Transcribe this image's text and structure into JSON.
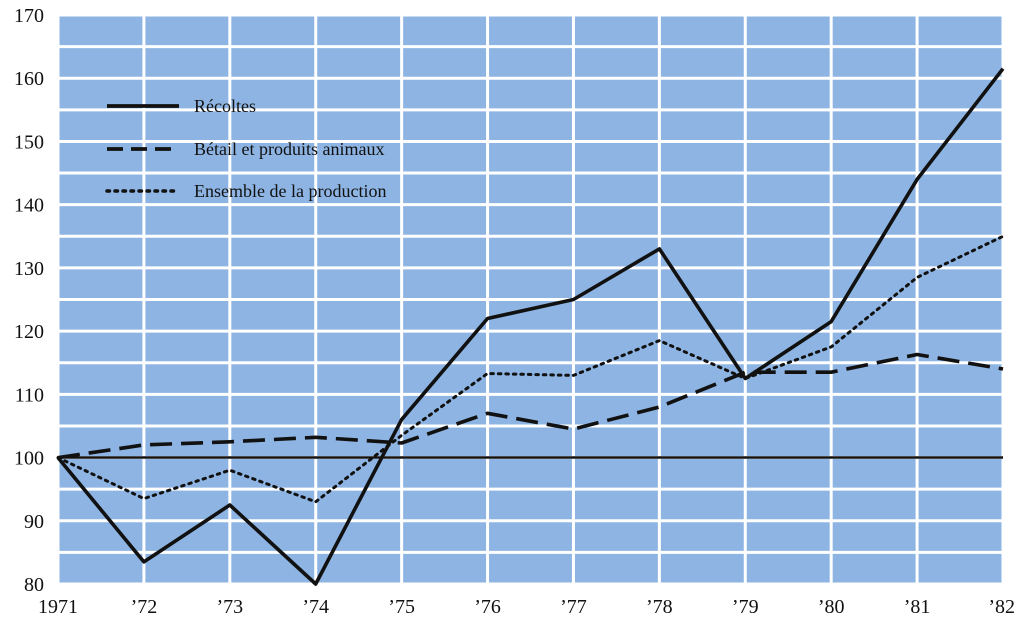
{
  "chart_data": {
    "type": "line",
    "x": [
      "1971",
      "'72",
      "'73",
      "'74",
      "'75",
      "'76",
      "'77",
      "'78",
      "'79",
      "'80",
      "'81",
      "'82"
    ],
    "x_tick_labels": [
      "1971",
      "’72",
      "’73",
      "’74",
      "’75",
      "’76",
      "’77",
      "’78",
      "’79",
      "’80",
      "’81",
      "’82"
    ],
    "y_ticks": [
      80,
      90,
      100,
      110,
      120,
      130,
      140,
      150,
      160,
      170
    ],
    "ylim": [
      80,
      170
    ],
    "reference_line": 100,
    "grid": true,
    "legend_position": "top-left",
    "series": [
      {
        "name": "Récoltes",
        "style": "solid",
        "values": [
          100,
          83.5,
          92.5,
          80,
          106,
          122,
          125,
          133,
          112.5,
          121.5,
          144,
          161.5
        ]
      },
      {
        "name": "Bétail et produits animaux",
        "style": "dashed",
        "values": [
          100,
          102,
          102.5,
          103.2,
          102.3,
          107,
          104.5,
          108,
          113.5,
          113.5,
          116.3,
          114
        ]
      },
      {
        "name": "Ensemble de la production",
        "style": "dotted",
        "values": [
          100,
          93.5,
          98,
          93,
          103.5,
          113.3,
          113,
          118.5,
          112.5,
          117.5,
          128.5,
          135
        ]
      }
    ],
    "colors": {
      "plot_background": "#8db4e2",
      "grid": "#ffffff",
      "lines": "#111111"
    }
  }
}
